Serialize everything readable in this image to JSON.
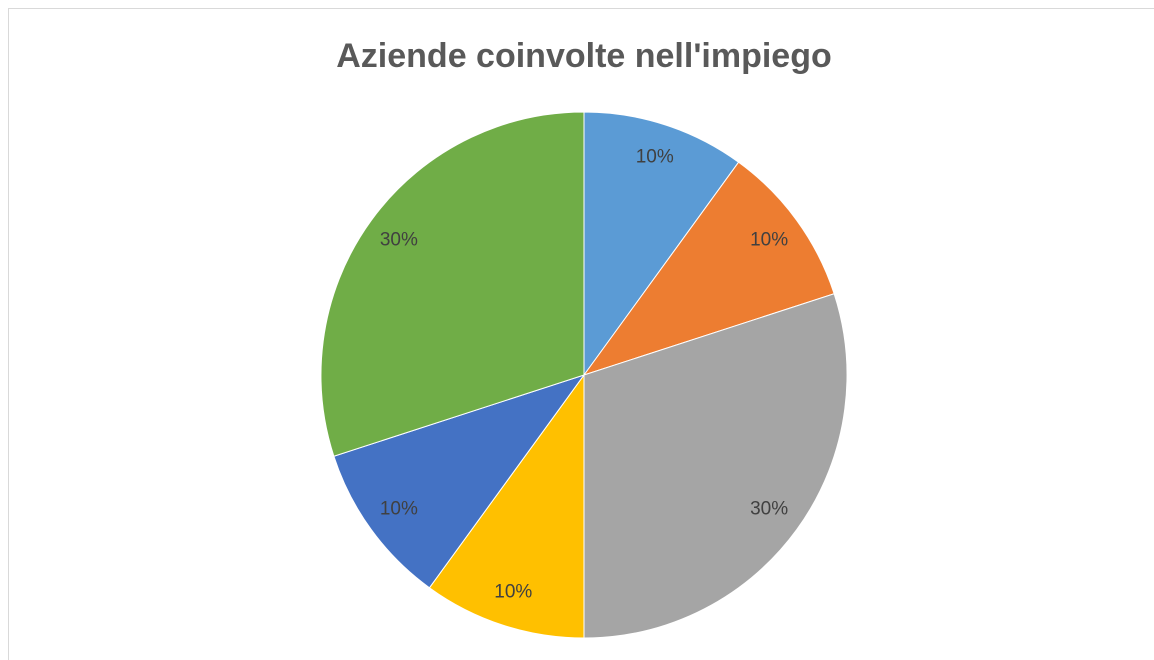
{
  "chart_data": {
    "type": "pie",
    "title": "Aziende coinvolte nell'impiego",
    "values": [
      10,
      10,
      30,
      10,
      10,
      30
    ],
    "value_labels": [
      "10%",
      "10%",
      "30%",
      "10%",
      "10%",
      "30%"
    ],
    "colors": [
      "#5b9bd5",
      "#ed7d31",
      "#a5a5a5",
      "#ffc000",
      "#4472c4",
      "#70ad47"
    ]
  }
}
